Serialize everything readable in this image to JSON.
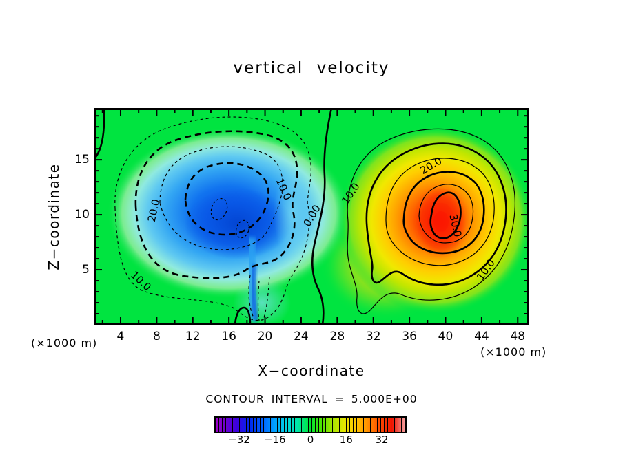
{
  "chart_data": {
    "type": "contour-heatmap",
    "title": "vertical  velocity",
    "xlabel": "X−coordinate",
    "ylabel": "Z−coordinate",
    "x_unit": "(×1000 m)",
    "y_unit": "(×1000 m)",
    "xlim": [
      1.1,
      49.2
    ],
    "ylim": [
      0,
      19.7
    ],
    "x_ticks": [
      4,
      8,
      12,
      16,
      20,
      24,
      28,
      32,
      36,
      40,
      44,
      48
    ],
    "x_minor_step": 2,
    "y_ticks": [
      5,
      10,
      15
    ],
    "y_minor_step": 1,
    "grid": false,
    "contour_interval": 5.0,
    "contour_interval_label": "CONTOUR INTERVAL = 5.000E+00",
    "levels_negative_dashed": [
      -5,
      -10,
      -15,
      -20,
      -25
    ],
    "levels_positive_solid": [
      0,
      5,
      10,
      15,
      20,
      25,
      30
    ],
    "bold_level_multiple": 10,
    "features": {
      "downdraft": {
        "x_center": 12,
        "z_center": 9,
        "min_value_est": -27,
        "line_style": "dashed"
      },
      "updraft": {
        "x_center": 40,
        "z_center": 10,
        "max_value_est": 33,
        "line_style": "solid"
      }
    },
    "contour_labels": [
      {
        "text": "20.0",
        "value": -20
      },
      {
        "text": "10.0",
        "value": -10
      },
      {
        "text": "10.0",
        "value": -10
      },
      {
        "text": "0.00",
        "value": 0
      },
      {
        "text": "10.0",
        "value": 10
      },
      {
        "text": "20.0",
        "value": 20
      },
      {
        "text": "30.0",
        "value": 30
      },
      {
        "text": "10.0",
        "value": 10
      }
    ],
    "colorbar": {
      "ticks": [
        "−32",
        "−16",
        "0",
        "16",
        "32"
      ],
      "tick_values": [
        -32,
        -16,
        0,
        16,
        32
      ],
      "range": [
        -42.5,
        42.5
      ],
      "stops": [
        {
          "pos": 0.0,
          "color": "#a000c8"
        },
        {
          "pos": 0.05,
          "color": "#6e00d2"
        },
        {
          "pos": 0.11,
          "color": "#3c00dc"
        },
        {
          "pos": 0.18,
          "color": "#0028f0"
        },
        {
          "pos": 0.25,
          "color": "#0064ff"
        },
        {
          "pos": 0.31,
          "color": "#00a0ff"
        },
        {
          "pos": 0.37,
          "color": "#00d2e6"
        },
        {
          "pos": 0.43,
          "color": "#00e6aa"
        },
        {
          "pos": 0.5,
          "color": "#00e632"
        },
        {
          "pos": 0.56,
          "color": "#50e600"
        },
        {
          "pos": 0.62,
          "color": "#aae600"
        },
        {
          "pos": 0.68,
          "color": "#e6e600"
        },
        {
          "pos": 0.74,
          "color": "#ffc800"
        },
        {
          "pos": 0.8,
          "color": "#ff9100"
        },
        {
          "pos": 0.86,
          "color": "#ff5000"
        },
        {
          "pos": 0.93,
          "color": "#f01400"
        },
        {
          "pos": 1.0,
          "color": "#f5a0a0"
        }
      ],
      "background_color": "#00e440",
      "negative_core_color": "#0850e6",
      "positive_core_color": "#f81200"
    }
  }
}
